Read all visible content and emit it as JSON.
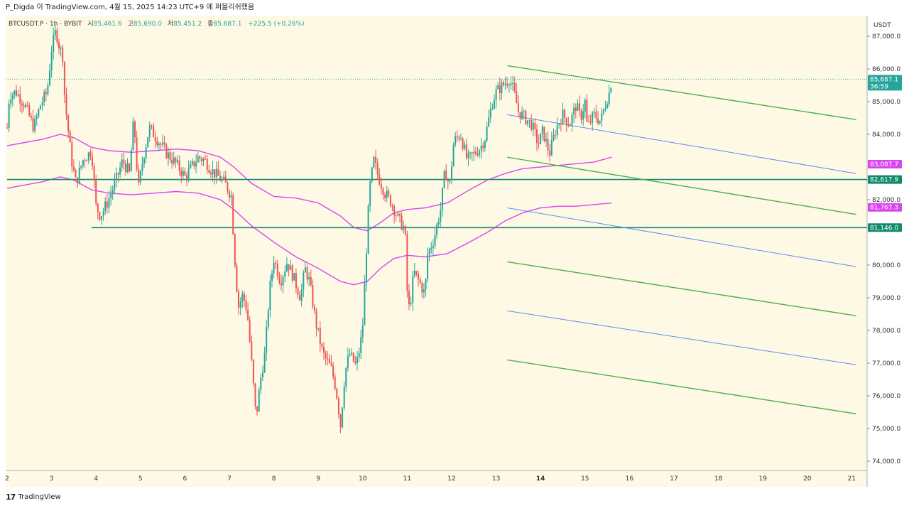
{
  "header": {
    "publish_info": "P_Digda 이 TradingView.com, 4월 15, 2025 14:23 UTC+9 에 퍼블리쉬했음"
  },
  "legend": {
    "symbol": "BTCUSDT.P · 1h · BYBIT",
    "open_label": "시",
    "open": "85,461.6",
    "high_label": "고",
    "high": "85,690.0",
    "low_label": "저",
    "low": "85,451.2",
    "close_label": "종",
    "close": "85,687.1",
    "change": "+225.5 (+0.26%)"
  },
  "footer": {
    "brand": "TradingView",
    "logo_glyph": "𝟭𝟳"
  },
  "colors": {
    "background": "#fdf9e4",
    "up": "#26a69a",
    "down": "#ef5350",
    "envelope": "#d946ef",
    "horizontal": "#138a6d",
    "channel_green": "#4caf50",
    "channel_blue": "#5b8def",
    "current_price": "#26a69a"
  },
  "chart_data": {
    "type": "candlestick",
    "symbol": "BTCUSDT.P",
    "interval": "1h",
    "exchange": "BYBIT",
    "price_unit": "USDT",
    "y_axis_title": "USDT",
    "ylim": [
      73800,
      87800
    ],
    "y_ticks": [
      {
        "value": 87000,
        "label": "87,000.0"
      },
      {
        "value": 86000,
        "label": "86,000.0"
      },
      {
        "value": 85000,
        "label": "85,000.0"
      },
      {
        "value": 84000,
        "label": "84,000.0"
      },
      {
        "value": 82000,
        "label": "82,000.0"
      },
      {
        "value": 80000,
        "label": "80,000.0"
      },
      {
        "value": 79000,
        "label": "79,000.0"
      },
      {
        "value": 78000,
        "label": "78,000.0"
      },
      {
        "value": 77000,
        "label": "77,000.0"
      },
      {
        "value": 76000,
        "label": "76,000.0"
      },
      {
        "value": 75000,
        "label": "75,000.0"
      },
      {
        "value": 74000,
        "label": "74,000.0"
      }
    ],
    "xlim": [
      2,
      21.1
    ],
    "x_ticks": [
      {
        "value": 2,
        "label": "2"
      },
      {
        "value": 3,
        "label": "3"
      },
      {
        "value": 4,
        "label": "4"
      },
      {
        "value": 5,
        "label": "5"
      },
      {
        "value": 6,
        "label": "6"
      },
      {
        "value": 7,
        "label": "7"
      },
      {
        "value": 8,
        "label": "8"
      },
      {
        "value": 9,
        "label": "9"
      },
      {
        "value": 10,
        "label": "10"
      },
      {
        "value": 11,
        "label": "11"
      },
      {
        "value": 12,
        "label": "12"
      },
      {
        "value": 13,
        "label": "13"
      },
      {
        "value": 14,
        "label": "14"
      },
      {
        "value": 15,
        "label": "15"
      },
      {
        "value": 16,
        "label": "16"
      },
      {
        "value": 17,
        "label": "17"
      },
      {
        "value": 18,
        "label": "18"
      },
      {
        "value": 19,
        "label": "19"
      },
      {
        "value": 20,
        "label": "20"
      },
      {
        "value": 21,
        "label": "21"
      }
    ],
    "price_path": [
      [
        2.0,
        84200
      ],
      [
        2.05,
        85200
      ],
      [
        2.2,
        85300
      ],
      [
        2.4,
        84900
      ],
      [
        2.6,
        84200
      ],
      [
        2.75,
        84900
      ],
      [
        2.9,
        85300
      ],
      [
        3.0,
        86600
      ],
      [
        3.1,
        87200
      ],
      [
        3.15,
        86800
      ],
      [
        3.25,
        86400
      ],
      [
        3.3,
        85000
      ],
      [
        3.45,
        83200
      ],
      [
        3.55,
        82500
      ],
      [
        3.7,
        83200
      ],
      [
        3.9,
        83500
      ],
      [
        4.0,
        81800
      ],
      [
        4.1,
        81500
      ],
      [
        4.25,
        81900
      ],
      [
        4.45,
        82600
      ],
      [
        4.6,
        83200
      ],
      [
        4.75,
        82800
      ],
      [
        4.85,
        84500
      ],
      [
        4.95,
        82300
      ],
      [
        5.05,
        83200
      ],
      [
        5.2,
        84200
      ],
      [
        5.4,
        83800
      ],
      [
        5.6,
        83400
      ],
      [
        5.8,
        83100
      ],
      [
        6.0,
        82700
      ],
      [
        6.1,
        82900
      ],
      [
        6.3,
        83300
      ],
      [
        6.45,
        83200
      ],
      [
        6.6,
        82900
      ],
      [
        6.75,
        82700
      ],
      [
        6.9,
        82500
      ],
      [
        7.05,
        82100
      ],
      [
        7.1,
        80600
      ],
      [
        7.2,
        78700
      ],
      [
        7.3,
        79100
      ],
      [
        7.4,
        78600
      ],
      [
        7.5,
        77000
      ],
      [
        7.6,
        75300
      ],
      [
        7.7,
        76500
      ],
      [
        7.8,
        77300
      ],
      [
        7.9,
        79200
      ],
      [
        8.0,
        80200
      ],
      [
        8.15,
        79500
      ],
      [
        8.3,
        80100
      ],
      [
        8.45,
        79600
      ],
      [
        8.6,
        79000
      ],
      [
        8.7,
        79900
      ],
      [
        8.8,
        79500
      ],
      [
        8.95,
        78200
      ],
      [
        9.1,
        77300
      ],
      [
        9.3,
        76800
      ],
      [
        9.4,
        76200
      ],
      [
        9.5,
        75100
      ],
      [
        9.6,
        76700
      ],
      [
        9.7,
        77300
      ],
      [
        9.85,
        76900
      ],
      [
        9.95,
        77600
      ],
      [
        10.0,
        78200
      ],
      [
        10.05,
        79600
      ],
      [
        10.15,
        82300
      ],
      [
        10.25,
        83200
      ],
      [
        10.35,
        82700
      ],
      [
        10.5,
        82200
      ],
      [
        10.65,
        81900
      ],
      [
        10.8,
        81400
      ],
      [
        10.95,
        81100
      ],
      [
        11.0,
        79200
      ],
      [
        11.05,
        78600
      ],
      [
        11.15,
        79800
      ],
      [
        11.3,
        79400
      ],
      [
        11.4,
        79100
      ],
      [
        11.45,
        80300
      ],
      [
        11.6,
        80800
      ],
      [
        11.75,
        81700
      ],
      [
        11.85,
        82900
      ],
      [
        11.95,
        82400
      ],
      [
        12.05,
        83800
      ],
      [
        12.2,
        84000
      ],
      [
        12.35,
        83200
      ],
      [
        12.5,
        83400
      ],
      [
        12.65,
        83600
      ],
      [
        12.75,
        83900
      ],
      [
        12.9,
        84900
      ],
      [
        13.0,
        85300
      ],
      [
        13.15,
        85500
      ],
      [
        13.3,
        85700
      ],
      [
        13.4,
        85300
      ],
      [
        13.5,
        84700
      ],
      [
        13.65,
        84500
      ],
      [
        13.8,
        84300
      ],
      [
        13.95,
        83700
      ],
      [
        14.05,
        84100
      ],
      [
        14.2,
        83400
      ],
      [
        14.35,
        84200
      ],
      [
        14.5,
        84600
      ],
      [
        14.65,
        84300
      ],
      [
        14.8,
        84900
      ],
      [
        14.9,
        84500
      ],
      [
        15.0,
        85000
      ],
      [
        15.05,
        84200
      ],
      [
        15.2,
        84600
      ],
      [
        15.35,
        84400
      ],
      [
        15.45,
        84900
      ],
      [
        15.55,
        85300
      ],
      [
        15.6,
        85687
      ]
    ],
    "envelope_upper": [
      [
        2.0,
        83650
      ],
      [
        2.4,
        83750
      ],
      [
        2.8,
        83850
      ],
      [
        3.2,
        84000
      ],
      [
        3.5,
        83900
      ],
      [
        3.9,
        83600
      ],
      [
        4.3,
        83500
      ],
      [
        4.8,
        83450
      ],
      [
        5.3,
        83500
      ],
      [
        5.8,
        83550
      ],
      [
        6.3,
        83500
      ],
      [
        6.8,
        83300
      ],
      [
        7.1,
        83000
      ],
      [
        7.5,
        82500
      ],
      [
        8.0,
        82100
      ],
      [
        8.5,
        82050
      ],
      [
        9.0,
        81900
      ],
      [
        9.5,
        81500
      ],
      [
        9.8,
        81150
      ],
      [
        10.1,
        81050
      ],
      [
        10.4,
        81300
      ],
      [
        10.7,
        81600
      ],
      [
        11.0,
        81700
      ],
      [
        11.4,
        81750
      ],
      [
        11.9,
        81900
      ],
      [
        12.4,
        82300
      ],
      [
        12.8,
        82600
      ],
      [
        13.2,
        82800
      ],
      [
        13.6,
        82950
      ],
      [
        14.0,
        83000
      ],
      [
        14.4,
        83050
      ],
      [
        14.8,
        83100
      ],
      [
        15.2,
        83150
      ],
      [
        15.6,
        83300
      ]
    ],
    "envelope_lower": [
      [
        2.0,
        82350
      ],
      [
        2.4,
        82450
      ],
      [
        2.8,
        82550
      ],
      [
        3.2,
        82700
      ],
      [
        3.5,
        82600
      ],
      [
        3.9,
        82300
      ],
      [
        4.3,
        82200
      ],
      [
        4.8,
        82150
      ],
      [
        5.3,
        82200
      ],
      [
        5.8,
        82250
      ],
      [
        6.3,
        82200
      ],
      [
        6.8,
        82000
      ],
      [
        7.1,
        81700
      ],
      [
        7.5,
        81200
      ],
      [
        8.0,
        80700
      ],
      [
        8.5,
        80250
      ],
      [
        9.0,
        79900
      ],
      [
        9.5,
        79500
      ],
      [
        9.8,
        79400
      ],
      [
        10.1,
        79500
      ],
      [
        10.4,
        79900
      ],
      [
        10.7,
        80200
      ],
      [
        11.0,
        80300
      ],
      [
        11.4,
        80250
      ],
      [
        11.9,
        80350
      ],
      [
        12.4,
        80700
      ],
      [
        12.8,
        81000
      ],
      [
        13.2,
        81350
      ],
      [
        13.6,
        81600
      ],
      [
        14.0,
        81750
      ],
      [
        14.4,
        81800
      ],
      [
        14.8,
        81800
      ],
      [
        15.2,
        81850
      ],
      [
        15.6,
        81900
      ]
    ],
    "horizontal_levels": [
      {
        "value": 82617.9,
        "label": "82,617.9",
        "start_x": 2.0
      },
      {
        "value": 81146.0,
        "label": "81,146.0",
        "start_x": 3.9
      }
    ],
    "envelope_labels": [
      {
        "value": 83087.7,
        "label": "83,087.7"
      },
      {
        "value": 81767.3,
        "label": "81,767.3"
      }
    ],
    "channel_lines": [
      {
        "color": "green",
        "x1": 13.25,
        "y1": 86100,
        "x2": 21.1,
        "y2": 84450
      },
      {
        "color": "blue",
        "x1": 13.25,
        "y1": 84600,
        "x2": 21.1,
        "y2": 82800
      },
      {
        "color": "green",
        "x1": 13.25,
        "y1": 83300,
        "x2": 21.1,
        "y2": 81550
      },
      {
        "color": "blue",
        "x1": 13.25,
        "y1": 81750,
        "x2": 21.1,
        "y2": 79950
      },
      {
        "color": "green",
        "x1": 13.25,
        "y1": 80100,
        "x2": 21.1,
        "y2": 78450
      },
      {
        "color": "blue",
        "x1": 13.25,
        "y1": 78600,
        "x2": 21.1,
        "y2": 76950
      },
      {
        "color": "green",
        "x1": 13.25,
        "y1": 77100,
        "x2": 21.1,
        "y2": 75450
      }
    ],
    "current_price": {
      "value": 85687.1,
      "label": "85,687.1",
      "countdown": "36:59"
    }
  }
}
